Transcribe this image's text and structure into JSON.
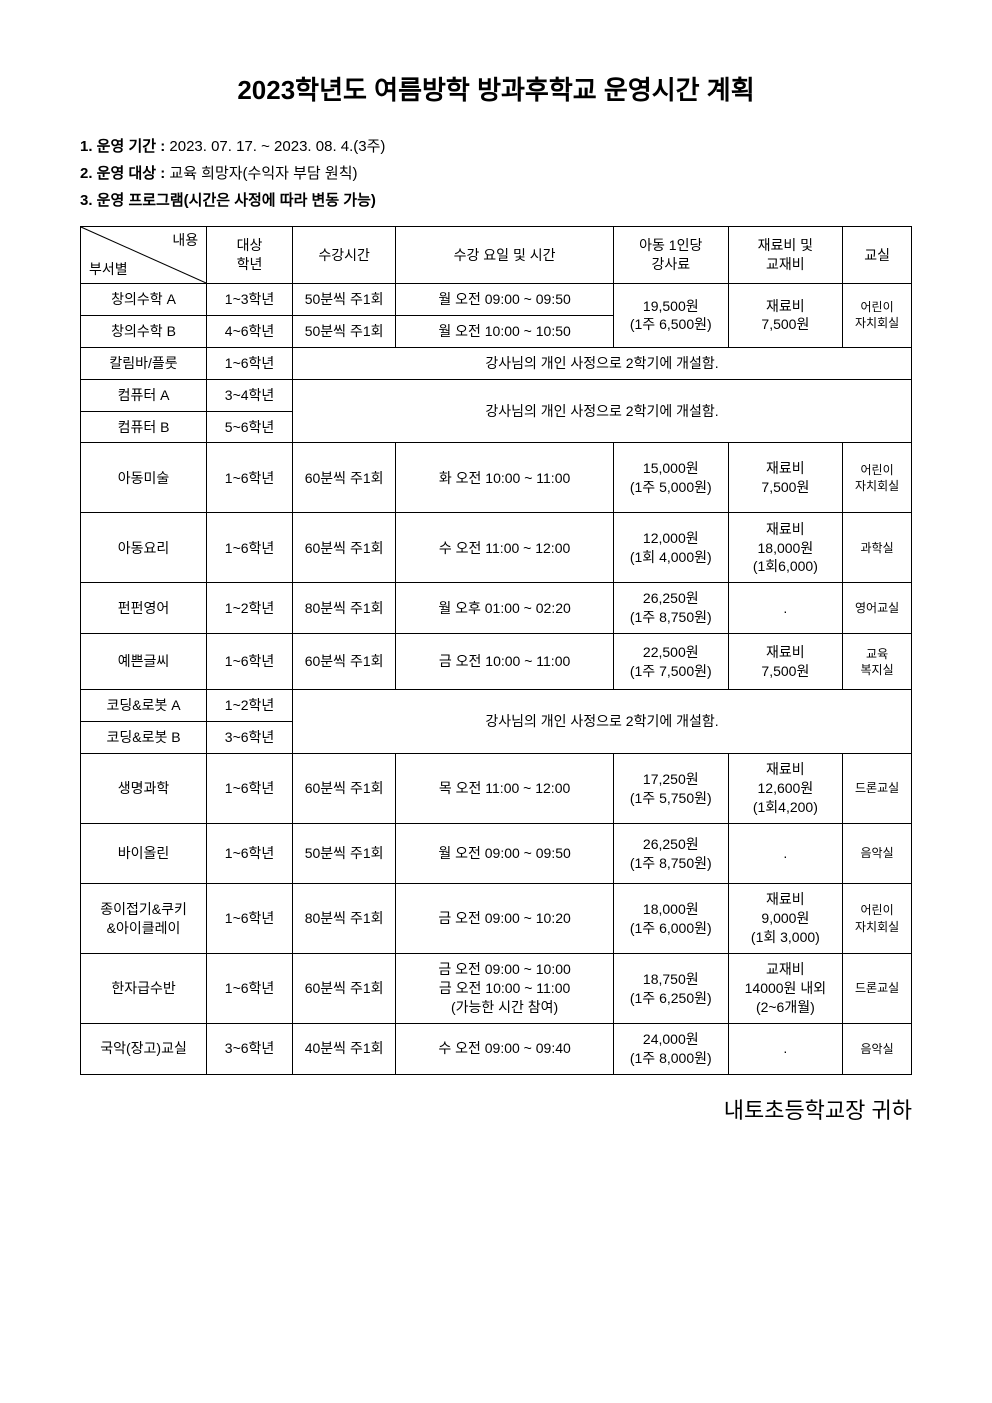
{
  "title": "2023학년도 여름방학 방과후학교 운영시간 계획",
  "meta": {
    "label1": "1. 운영 기간 :",
    "value1": "2023. 07. 17. ~ 2023. 08. 4.(3주)",
    "label2": "2. 운영 대상 :",
    "value2": "교육 희망자(수익자 부담 원칙)",
    "label3": "3. 운영 프로그램(시간은 사정에 따라 변동 가능)"
  },
  "header": {
    "diag_top": "내용",
    "diag_bot": "부서별",
    "col_grade": "대상\n학년",
    "col_duration": "수강시간",
    "col_daytime": "수강 요일 및 시간",
    "col_fee": "아동 1인당\n강사료",
    "col_material": "재료비 및\n교재비",
    "col_room": "교실"
  },
  "notice_closed": "강사님의 개인 사정으로 2학기에 개설함.",
  "footer": "내토초등학교장 귀하",
  "rows": {
    "r1": {
      "name": "창의수학 A",
      "grade": "1~3학년",
      "dur": "50분씩 주1회",
      "time": "월 오전 09:00 ~ 09:50"
    },
    "r2": {
      "name": "창의수학 B",
      "grade": "4~6학년",
      "dur": "50분씩 주1회",
      "time": "월 오전 10:00 ~ 10:50"
    },
    "r12_fee": "19,500원\n(1주 6,500원)",
    "r12_mat": "재료비\n7,500원",
    "r12_room": "어린이\n자치회실",
    "r3": {
      "name": "칼림바/플룻",
      "grade": "1~6학년"
    },
    "r4": {
      "name": "컴퓨터 A",
      "grade": "3~4학년"
    },
    "r5": {
      "name": "컴퓨터 B",
      "grade": "5~6학년"
    },
    "r6": {
      "name": "아동미술",
      "grade": "1~6학년",
      "dur": "60분씩 주1회",
      "time": "화 오전 10:00 ~ 11:00",
      "fee": "15,000원\n(1주 5,000원)",
      "mat": "재료비\n7,500원",
      "room": "어린이\n자치회실"
    },
    "r7": {
      "name": "아동요리",
      "grade": "1~6학년",
      "dur": "60분씩 주1회",
      "time": "수 오전 11:00 ~ 12:00",
      "fee": "12,000원\n(1회 4,000원)",
      "mat": "재료비\n18,000원\n(1회6,000)",
      "room": "과학실"
    },
    "r8": {
      "name": "펀펀영어",
      "grade": "1~2학년",
      "dur": "80분씩 주1회",
      "time": "월 오후 01:00 ~ 02:20",
      "fee": "26,250원\n(1주 8,750원)",
      "mat": ".",
      "room": "영어교실"
    },
    "r9": {
      "name": "예쁜글씨",
      "grade": "1~6학년",
      "dur": "60분씩 주1회",
      "time": "금 오전 10:00 ~ 11:00",
      "fee": "22,500원\n(1주 7,500원)",
      "mat": "재료비\n7,500원",
      "room": "교육\n복지실"
    },
    "r10": {
      "name": "코딩&로봇 A",
      "grade": "1~2학년"
    },
    "r11": {
      "name": "코딩&로봇 B",
      "grade": "3~6학년"
    },
    "r12": {
      "name": "생명과학",
      "grade": "1~6학년",
      "dur": "60분씩 주1회",
      "time": "목 오전 11:00 ~ 12:00",
      "fee": "17,250원\n(1주 5,750원)",
      "mat": "재료비\n12,600원\n(1회4,200)",
      "room": "드론교실"
    },
    "r13": {
      "name": "바이올린",
      "grade": "1~6학년",
      "dur": "50분씩 주1회",
      "time": "월 오전 09:00 ~ 09:50",
      "fee": "26,250원\n(1주 8,750원)",
      "mat": ".",
      "room": "음악실"
    },
    "r14": {
      "name": "종이접기&쿠키\n&아이클레이",
      "grade": "1~6학년",
      "dur": "80분씩 주1회",
      "time": "금 오전 09:00 ~ 10:20",
      "fee": "18,000원\n(1주 6,000원)",
      "mat": "재료비\n9,000원\n(1회 3,000)",
      "room": "어린이\n자치회실"
    },
    "r15": {
      "name": "한자급수반",
      "grade": "1~6학년",
      "dur": "60분씩 주1회",
      "time": "금 오전 09:00 ~ 10:00\n금 오전 10:00 ~ 11:00\n(가능한 시간 참여)",
      "fee": "18,750원\n(1주 6,250원)",
      "mat": "교재비\n14000원 내외\n(2~6개월)",
      "room": "드론교실"
    },
    "r16": {
      "name": "국악(장고)교실",
      "grade": "3~6학년",
      "dur": "40분씩 주1회",
      "time": "수 오전 09:00 ~ 09:40",
      "fee": "24,000원\n(1주 8,000원)",
      "mat": ".",
      "room": "음악실"
    }
  },
  "style": {
    "border_color": "#000000",
    "background_color": "#ffffff",
    "title_fontsize": 26,
    "body_fontsize": 14,
    "sub_fontsize": 12,
    "footer_fontsize": 22
  }
}
